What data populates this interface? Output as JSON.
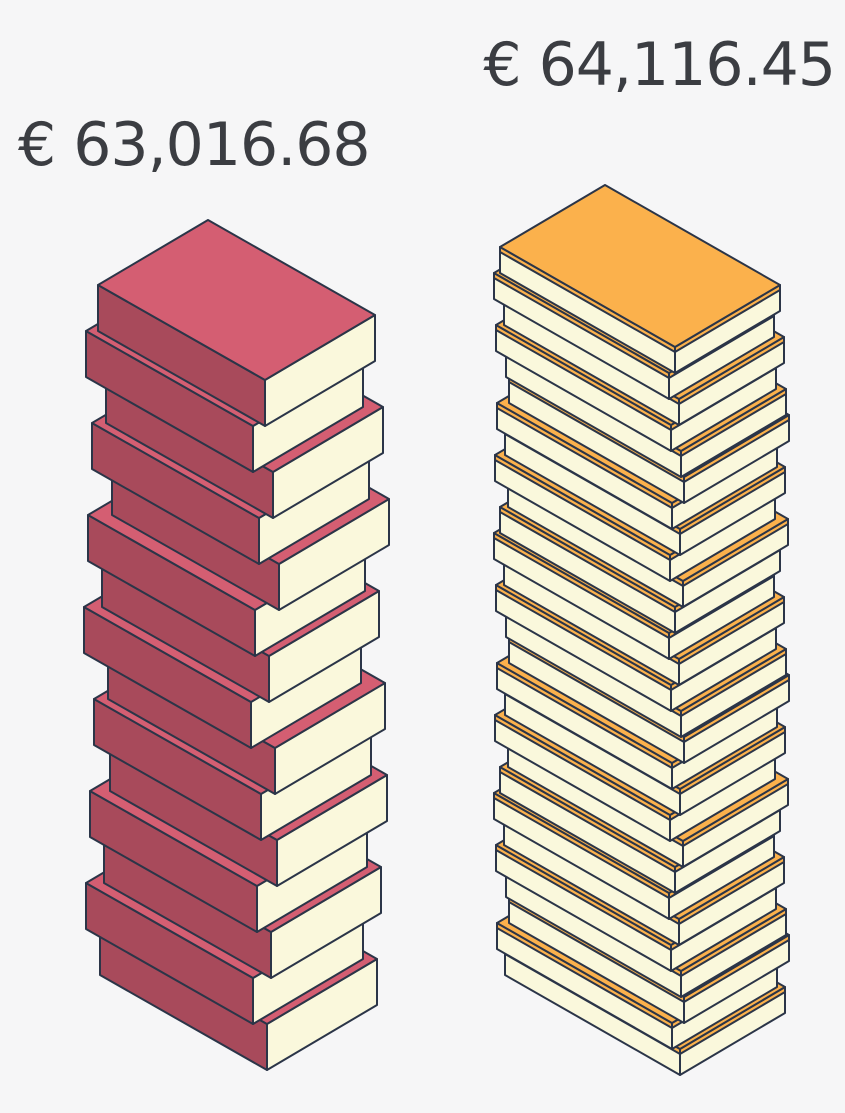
{
  "stacks": [
    {
      "amount": "€ 63,016.68"
    },
    {
      "amount": "€ 64,116.45"
    }
  ]
}
